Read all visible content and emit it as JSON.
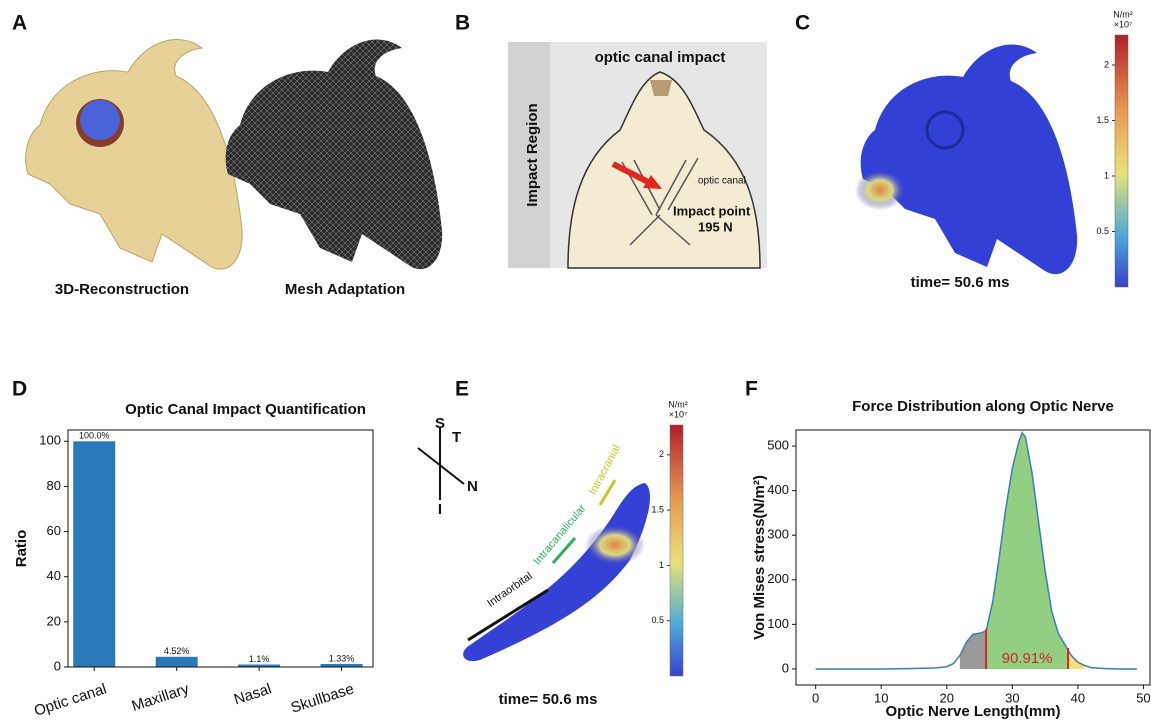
{
  "panels": {
    "A": {
      "label": "A",
      "captions": [
        "3D-Reconstruction",
        "Mesh Adaptation"
      ]
    },
    "B": {
      "label": "B",
      "title": "optic canal impact",
      "side_label": "Impact Region",
      "annotation": "optic canal",
      "impact_label": "Impact point",
      "force": "195 N"
    },
    "C": {
      "label": "C",
      "time": "time= 50.6 ms",
      "colorbar": {
        "unit": "N/m²",
        "scale": "×10⁷",
        "lim": [
          0,
          2.27
        ],
        "ticks": [
          0.5,
          1,
          1.5,
          2
        ]
      }
    },
    "D": {
      "label": "D"
    },
    "E": {
      "label": "E",
      "axes": [
        "S",
        "T",
        "N",
        "I"
      ],
      "segments": [
        "Intraorbital",
        "Intracanalicular",
        "Intracranial"
      ],
      "time": "time= 50.6 ms",
      "colorbar": {
        "unit": "N/m²",
        "scale": "×10⁷",
        "lim": [
          0,
          2.27
        ],
        "ticks": [
          0.5,
          1,
          1.5,
          2
        ]
      }
    },
    "F": {
      "label": "F"
    }
  },
  "chart_data": [
    {
      "type": "bar",
      "title": "Optic Canal Impact Quantification",
      "y_label": "Ratio",
      "categories": [
        "Optic canal",
        "Maxillary",
        "Nasal",
        "Skullbase"
      ],
      "values": [
        100,
        4.52,
        1.1,
        1.33
      ],
      "value_labels": [
        "100.0%",
        "4.52%",
        "1.1%",
        "1.33%"
      ],
      "color": "#2a7ab9",
      "ylim": [
        0,
        105
      ],
      "yticks": [
        0,
        20,
        40,
        60,
        80,
        100
      ]
    },
    {
      "type": "area",
      "title": "Force Distribution along Optic Nerve",
      "x_label": "Optic Nerve Length(mm)",
      "y_label": "Von Mises stress(N/m²)",
      "x": [
        0,
        5,
        10,
        15,
        18,
        20,
        21,
        22,
        23,
        24,
        25,
        26,
        27,
        28,
        29,
        30,
        31,
        31.5,
        32,
        33,
        34,
        35,
        36,
        37,
        38,
        39,
        40,
        41,
        42,
        44,
        46,
        49
      ],
      "values": [
        0,
        0,
        0,
        1,
        2,
        5,
        12,
        30,
        60,
        78,
        80,
        85,
        150,
        250,
        360,
        450,
        510,
        530,
        520,
        440,
        330,
        220,
        130,
        80,
        55,
        30,
        15,
        8,
        3,
        1,
        0,
        0
      ],
      "color": "#3a7fb0",
      "regions": [
        {
          "from": 22,
          "to": 26,
          "color": "#9a9a9a"
        },
        {
          "from": 26,
          "to": 38.5,
          "color": "#93cf83"
        },
        {
          "from": 38.5,
          "to": 41,
          "color": "#f1e27c"
        }
      ],
      "markers": [
        26,
        38.5
      ],
      "marker_color": "#d62728",
      "annotation": "90.91%",
      "xlim": [
        -3,
        51
      ],
      "ylim": [
        -36,
        536
      ],
      "xticks": [
        0,
        10,
        20,
        30,
        40,
        50
      ],
      "yticks": [
        0,
        100,
        200,
        300,
        400,
        500
      ]
    }
  ]
}
